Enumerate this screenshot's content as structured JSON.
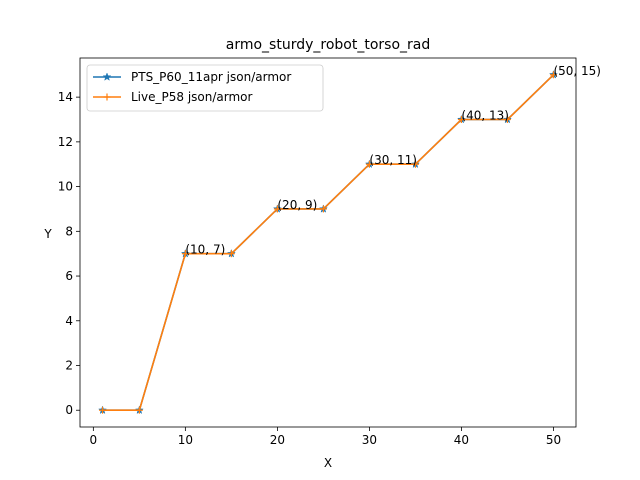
{
  "chart_data": {
    "type": "line",
    "title": "armo_sturdy_robot_torso_rad",
    "xlabel": "X",
    "ylabel": "Y",
    "xlim": [
      -1.45,
      52.45
    ],
    "ylim": [
      -0.75,
      15.75
    ],
    "xticks": [
      0,
      10,
      20,
      30,
      40,
      50
    ],
    "yticks": [
      0,
      2,
      4,
      6,
      8,
      10,
      12,
      14
    ],
    "legend_position": "top-left",
    "grid": false,
    "x": [
      1,
      5,
      10,
      15,
      20,
      25,
      30,
      35,
      40,
      45,
      50
    ],
    "series": [
      {
        "name": "PTS_P60_11apr json/armor",
        "color": "#1f77b4",
        "marker": "star",
        "values": [
          0,
          0,
          7,
          7,
          9,
          9,
          11,
          11,
          13,
          13,
          15
        ]
      },
      {
        "name": "Live_P58 json/armor",
        "color": "#ff7f0e",
        "marker": "plus",
        "values": [
          0,
          0,
          7,
          7,
          9,
          9,
          11,
          11,
          13,
          13,
          15
        ]
      }
    ],
    "annotations": [
      {
        "text": "(10, 7)",
        "x": 10,
        "y": 7
      },
      {
        "text": "(20, 9)",
        "x": 20,
        "y": 9
      },
      {
        "text": "(30, 11)",
        "x": 30,
        "y": 11
      },
      {
        "text": "(40, 13)",
        "x": 40,
        "y": 13
      },
      {
        "text": "(50, 15)",
        "x": 50,
        "y": 15
      }
    ]
  }
}
